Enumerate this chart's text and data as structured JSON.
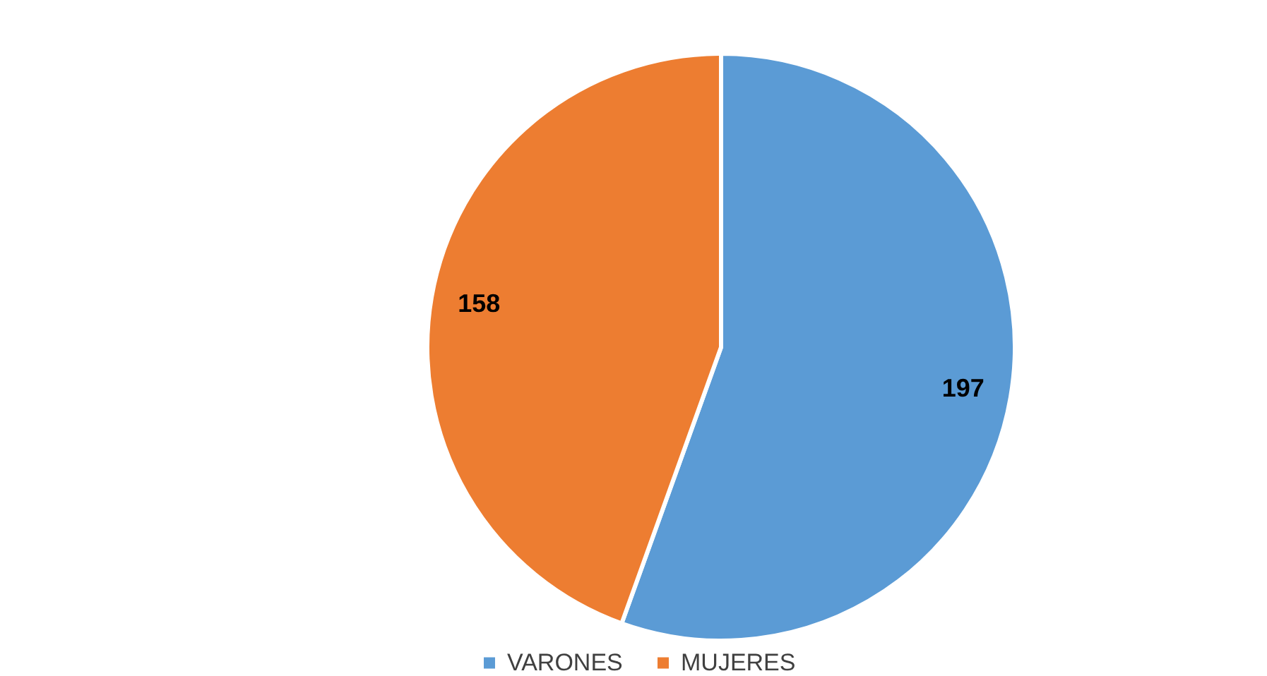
{
  "chart_data": {
    "type": "pie",
    "categories": [
      "VARONES",
      "MUJERES"
    ],
    "values": [
      197,
      158
    ],
    "colors": [
      "#5b9bd5",
      "#ed7d31"
    ],
    "data_labels": true,
    "legend": "bottom"
  }
}
